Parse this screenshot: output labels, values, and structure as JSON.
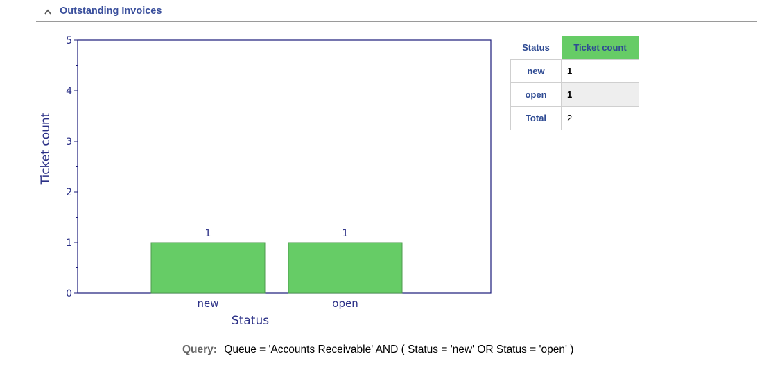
{
  "widget": {
    "title": "Outstanding Invoices",
    "collapse_icon": "chevron-up-icon"
  },
  "chart_data": {
    "type": "bar",
    "title": "",
    "xlabel": "Status",
    "ylabel": "Ticket count",
    "categories": [
      "new",
      "open"
    ],
    "values": [
      1,
      1
    ],
    "ylim": [
      0,
      5
    ],
    "yticks": [
      0,
      1,
      2,
      3,
      4,
      5
    ],
    "data_labels": [
      "1",
      "1"
    ],
    "grid": false,
    "bar_color": "#66cc66",
    "axis_color": "#1a1a7a"
  },
  "table": {
    "headers": {
      "status": "Status",
      "count": "Ticket count"
    },
    "rows": [
      {
        "label": "new",
        "value": "1"
      },
      {
        "label": "open",
        "value": "1"
      }
    ],
    "total": {
      "label": "Total",
      "value": "2"
    },
    "header_accent": "#66cc66"
  },
  "query": {
    "label": "Query:",
    "text": "Queue = 'Accounts Receivable' AND ( Status = 'new' OR Status = 'open' )"
  }
}
